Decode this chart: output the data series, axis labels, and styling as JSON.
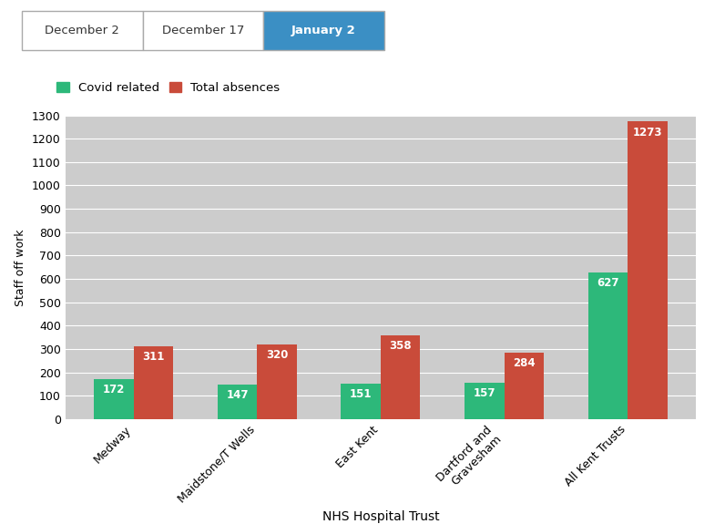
{
  "categories": [
    "Medway",
    "Maidstone/T Wells",
    "East Kent",
    "Dartford and\nGravesham",
    "All Kent Trusts"
  ],
  "covid_values": [
    172,
    147,
    151,
    157,
    627
  ],
  "total_values": [
    311,
    320,
    358,
    284,
    1273
  ],
  "covid_color": "#2db87a",
  "total_color": "#c94b3a",
  "bar_width": 0.32,
  "ylim": [
    0,
    1300
  ],
  "yticks": [
    0,
    100,
    200,
    300,
    400,
    500,
    600,
    700,
    800,
    900,
    1000,
    1100,
    1200,
    1300
  ],
  "ylabel": "Staff off work",
  "xlabel": "NHS Hospital Trust",
  "legend_covid": "Covid related",
  "legend_total": "Total absences",
  "plot_bg": "#cccccc",
  "fig_bg": "#ffffff",
  "header_buttons": [
    "December 2",
    "December 17",
    "January 2"
  ],
  "active_button": "January 2",
  "active_button_color": "#3b8fc4",
  "inactive_button_color": "#ffffff",
  "value_fontsize": 8.5,
  "axis_fontsize": 9,
  "label_fontsize": 10,
  "grid_color": "#ffffff"
}
